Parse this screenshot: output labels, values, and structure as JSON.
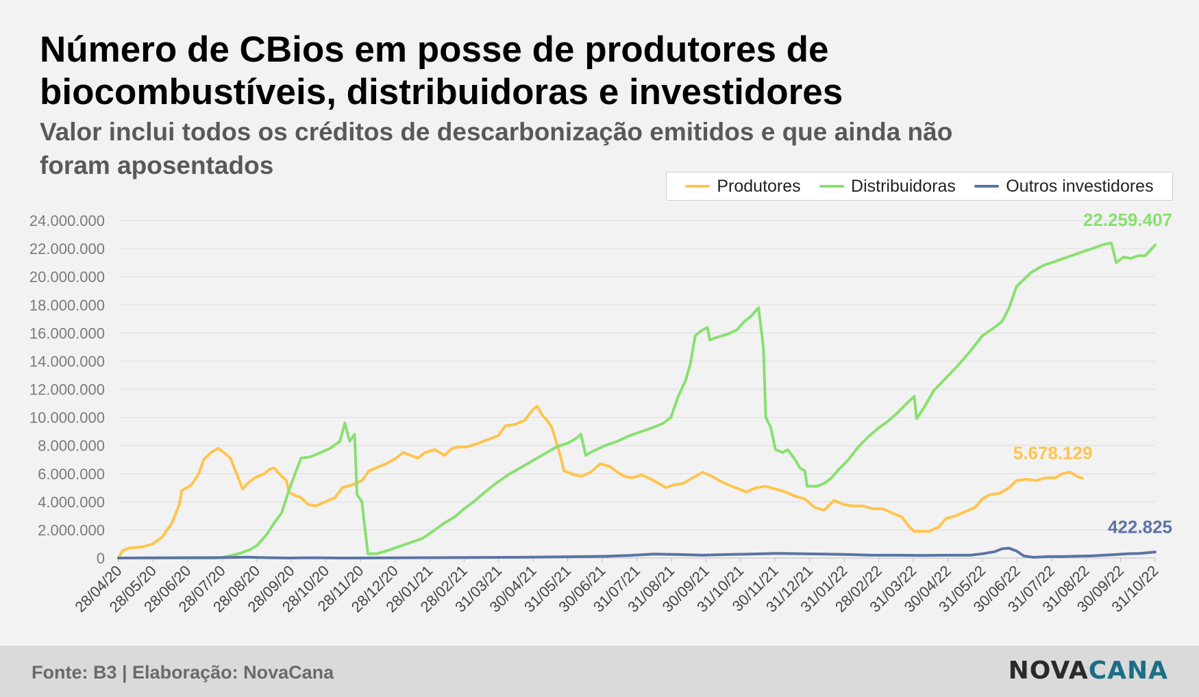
{
  "title": "Número de CBios em posse de produtores de biocombustíveis, distribuidoras e investidores",
  "subtitle": "Valor inclui todos os créditos de descarbonização emitidos e que ainda não foram aposentados",
  "footer": {
    "source": "Fonte: B3 | Elaboração: NovaCana",
    "brand_a": "NOVA",
    "brand_b": "CANA"
  },
  "colors": {
    "produtores": "#ffc44d",
    "distribuidoras": "#88e070",
    "outros": "#5b73a5",
    "grid": "#dcdcdc",
    "axis_text": "#444444",
    "ytick_text": "#7a7a7a"
  },
  "chart_data": {
    "type": "line",
    "x_tick_labels": [
      "28/04/20",
      "28/05/20",
      "28/06/20",
      "28/07/20",
      "28/08/20",
      "28/09/20",
      "28/10/20",
      "28/11/20",
      "28/12/20",
      "28/01/21",
      "28/02/21",
      "31/03/21",
      "30/04/21",
      "31/05/21",
      "30/06/21",
      "31/07/21",
      "31/08/21",
      "30/09/21",
      "31/10/21",
      "30/11/21",
      "31/12/21",
      "31/01/22",
      "28/02/22",
      "31/03/22",
      "30/04/22",
      "31/05/22",
      "30/06/22",
      "31/07/22",
      "31/08/22",
      "30/09/22",
      "31/10/22"
    ],
    "y_tick_labels": [
      "0",
      "2.000.000",
      "4.000.000",
      "6.000.000",
      "8.000.000",
      "10.000.000",
      "12.000.000",
      "14.000.000",
      "16.000.000",
      "18.000.000",
      "20.000.000",
      "22.000.000",
      "24.000.000"
    ],
    "ylim": [
      0,
      24000000
    ],
    "legend_position": "top-right",
    "grid": true,
    "series": [
      {
        "name": "Produtores",
        "color_key": "produtores",
        "end_label": "5.678.129",
        "points": [
          [
            0,
            0
          ],
          [
            0.15,
            500000
          ],
          [
            0.4,
            700000
          ],
          [
            1,
            800000
          ],
          [
            1.4,
            1000000
          ],
          [
            1.8,
            1500000
          ],
          [
            2.2,
            2500000
          ],
          [
            2.5,
            3800000
          ],
          [
            2.6,
            4800000
          ],
          [
            3,
            5200000
          ],
          [
            3.3,
            6000000
          ],
          [
            3.5,
            7000000
          ],
          [
            3.8,
            7500000
          ],
          [
            4.1,
            7800000
          ],
          [
            4.4,
            7400000
          ],
          [
            4.6,
            7100000
          ],
          [
            4.8,
            6200000
          ],
          [
            4.9,
            5800000
          ],
          [
            5.1,
            4900000
          ],
          [
            5.3,
            5300000
          ],
          [
            5.6,
            5700000
          ],
          [
            6,
            6000000
          ],
          [
            6.2,
            6300000
          ],
          [
            6.4,
            6400000
          ],
          [
            6.6,
            6000000
          ],
          [
            6.9,
            5500000
          ],
          [
            7,
            4700000
          ],
          [
            7.3,
            4400000
          ],
          [
            7.5,
            4300000
          ],
          [
            7.8,
            3800000
          ],
          [
            8.1,
            3700000
          ],
          [
            8.5,
            4000000
          ],
          [
            8.9,
            4300000
          ],
          [
            9.2,
            5000000
          ],
          [
            9.6,
            5200000
          ],
          [
            10,
            5500000
          ],
          [
            10.3,
            6200000
          ],
          [
            10.7,
            6500000
          ],
          [
            11,
            6700000
          ],
          [
            11.4,
            7100000
          ],
          [
            11.7,
            7500000
          ],
          [
            12,
            7300000
          ],
          [
            12.3,
            7100000
          ],
          [
            12.6,
            7500000
          ],
          [
            13,
            7700000
          ],
          [
            13.4,
            7300000
          ],
          [
            13.7,
            7800000
          ],
          [
            14,
            7900000
          ],
          [
            14.3,
            7900000
          ],
          [
            14.7,
            8100000
          ],
          [
            15,
            8300000
          ],
          [
            15.3,
            8500000
          ],
          [
            15.6,
            8700000
          ],
          [
            15.9,
            9400000
          ],
          [
            16.3,
            9500000
          ],
          [
            16.7,
            9800000
          ],
          [
            17,
            10500000
          ],
          [
            17.2,
            10800000
          ],
          [
            17.4,
            10200000
          ],
          [
            17.6,
            9800000
          ],
          [
            17.8,
            9300000
          ],
          [
            18,
            8200000
          ],
          [
            18.2,
            7000000
          ],
          [
            18.3,
            6200000
          ],
          [
            18.6,
            6000000
          ],
          [
            19,
            5800000
          ],
          [
            19.4,
            6100000
          ],
          [
            19.8,
            6700000
          ],
          [
            20.2,
            6500000
          ],
          [
            20.5,
            6100000
          ],
          [
            20.8,
            5800000
          ],
          [
            21.1,
            5700000
          ],
          [
            21.5,
            5900000
          ],
          [
            21.9,
            5600000
          ],
          [
            22.2,
            5300000
          ],
          [
            22.5,
            5000000
          ],
          [
            22.8,
            5200000
          ],
          [
            23.2,
            5300000
          ],
          [
            23.6,
            5700000
          ],
          [
            24,
            6100000
          ],
          [
            24.4,
            5800000
          ],
          [
            24.8,
            5400000
          ],
          [
            25.2,
            5100000
          ],
          [
            25.5,
            4900000
          ],
          [
            25.8,
            4700000
          ],
          [
            26.2,
            5000000
          ],
          [
            26.6,
            5100000
          ],
          [
            27,
            4900000
          ],
          [
            27.4,
            4700000
          ],
          [
            27.8,
            4400000
          ],
          [
            28.2,
            4200000
          ],
          [
            28.6,
            3600000
          ],
          [
            29,
            3400000
          ],
          [
            29.4,
            4100000
          ],
          [
            29.8,
            3800000
          ],
          [
            30.2,
            3700000
          ],
          [
            30.6,
            3700000
          ],
          [
            31,
            3500000
          ],
          [
            31.4,
            3500000
          ],
          [
            31.8,
            3200000
          ],
          [
            32.2,
            2900000
          ],
          [
            32.5,
            2200000
          ],
          [
            32.7,
            1900000
          ],
          [
            33,
            1900000
          ],
          [
            33.3,
            1900000
          ],
          [
            33.7,
            2200000
          ],
          [
            34,
            2800000
          ],
          [
            34.4,
            3000000
          ],
          [
            34.8,
            3300000
          ],
          [
            35.2,
            3600000
          ],
          [
            35.5,
            4200000
          ],
          [
            35.8,
            4500000
          ],
          [
            36.2,
            4600000
          ],
          [
            36.6,
            5000000
          ],
          [
            36.9,
            5500000
          ],
          [
            37.3,
            5600000
          ],
          [
            37.7,
            5500000
          ],
          [
            38.1,
            5700000
          ],
          [
            38.5,
            5700000
          ],
          [
            38.8,
            6000000
          ],
          [
            39.1,
            6100000
          ],
          [
            39.4,
            5800000
          ],
          [
            39.6,
            5678129
          ]
        ]
      },
      {
        "name": "Distribuidoras",
        "color_key": "distribuidoras",
        "end_label": "22.259.407",
        "points": [
          [
            0,
            0
          ],
          [
            4,
            0
          ],
          [
            4.3,
            50000
          ],
          [
            4.7,
            200000
          ],
          [
            5.1,
            400000
          ],
          [
            5.4,
            600000
          ],
          [
            5.7,
            900000
          ],
          [
            6.1,
            1700000
          ],
          [
            6.4,
            2500000
          ],
          [
            6.7,
            3200000
          ],
          [
            7,
            4800000
          ],
          [
            7.3,
            6200000
          ],
          [
            7.5,
            7100000
          ],
          [
            7.9,
            7200000
          ],
          [
            8.3,
            7500000
          ],
          [
            8.7,
            7800000
          ],
          [
            9.1,
            8300000
          ],
          [
            9.3,
            9600000
          ],
          [
            9.5,
            8300000
          ],
          [
            9.7,
            8800000
          ],
          [
            9.8,
            4500000
          ],
          [
            10,
            4000000
          ],
          [
            10.1,
            2500000
          ],
          [
            10.25,
            300000
          ],
          [
            10.6,
            300000
          ],
          [
            11,
            500000
          ],
          [
            11.5,
            800000
          ],
          [
            12,
            1100000
          ],
          [
            12.5,
            1400000
          ],
          [
            13,
            2000000
          ],
          [
            13.4,
            2500000
          ],
          [
            13.8,
            2900000
          ],
          [
            14.2,
            3500000
          ],
          [
            14.6,
            4000000
          ],
          [
            15,
            4600000
          ],
          [
            15.5,
            5300000
          ],
          [
            16,
            5900000
          ],
          [
            16.5,
            6400000
          ],
          [
            17,
            6900000
          ],
          [
            17.5,
            7400000
          ],
          [
            18,
            7900000
          ],
          [
            18.5,
            8200000
          ],
          [
            18.8,
            8500000
          ],
          [
            19,
            8800000
          ],
          [
            19.2,
            7300000
          ],
          [
            19.5,
            7600000
          ],
          [
            20,
            8000000
          ],
          [
            20.5,
            8300000
          ],
          [
            21,
            8700000
          ],
          [
            21.5,
            9000000
          ],
          [
            22,
            9300000
          ],
          [
            22.4,
            9600000
          ],
          [
            22.7,
            10000000
          ],
          [
            23,
            11500000
          ],
          [
            23.3,
            12600000
          ],
          [
            23.5,
            13800000
          ],
          [
            23.7,
            15800000
          ],
          [
            23.9,
            16100000
          ],
          [
            24.2,
            16400000
          ],
          [
            24.3,
            15500000
          ],
          [
            24.6,
            15700000
          ],
          [
            25,
            15900000
          ],
          [
            25.4,
            16200000
          ],
          [
            25.7,
            16800000
          ],
          [
            26,
            17200000
          ],
          [
            26.3,
            17800000
          ],
          [
            26.5,
            15000000
          ],
          [
            26.6,
            10000000
          ],
          [
            26.8,
            9300000
          ],
          [
            27,
            7700000
          ],
          [
            27.3,
            7500000
          ],
          [
            27.5,
            7700000
          ],
          [
            27.8,
            7000000
          ],
          [
            28,
            6400000
          ],
          [
            28.2,
            6200000
          ],
          [
            28.3,
            5100000
          ],
          [
            28.7,
            5100000
          ],
          [
            29,
            5300000
          ],
          [
            29.3,
            5700000
          ],
          [
            29.6,
            6300000
          ],
          [
            30,
            7000000
          ],
          [
            30.4,
            7900000
          ],
          [
            30.8,
            8600000
          ],
          [
            31.2,
            9200000
          ],
          [
            31.6,
            9700000
          ],
          [
            32,
            10300000
          ],
          [
            32.4,
            11000000
          ],
          [
            32.7,
            11500000
          ],
          [
            32.8,
            9900000
          ],
          [
            33.1,
            10700000
          ],
          [
            33.5,
            11900000
          ],
          [
            34,
            12800000
          ],
          [
            34.5,
            13700000
          ],
          [
            35,
            14700000
          ],
          [
            35.5,
            15800000
          ],
          [
            36,
            16400000
          ],
          [
            36.3,
            16800000
          ],
          [
            36.6,
            17800000
          ],
          [
            36.9,
            19300000
          ],
          [
            37.2,
            19800000
          ],
          [
            37.5,
            20300000
          ],
          [
            38,
            20800000
          ],
          [
            38.5,
            21100000
          ],
          [
            39,
            21400000
          ],
          [
            39.5,
            21700000
          ],
          [
            40,
            22000000
          ],
          [
            40.5,
            22300000
          ],
          [
            40.8,
            22400000
          ],
          [
            41,
            21000000
          ],
          [
            41.3,
            21400000
          ],
          [
            41.6,
            21300000
          ],
          [
            41.9,
            21500000
          ],
          [
            42.2,
            21500000
          ],
          [
            42.6,
            22259407
          ]
        ]
      },
      {
        "name": "Outros investidores",
        "color_key": "outros",
        "end_label": "422.825",
        "points": [
          [
            0,
            0
          ],
          [
            4.3,
            30000
          ],
          [
            5.3,
            60000
          ],
          [
            6.2,
            20000
          ],
          [
            7,
            0
          ],
          [
            8,
            20000
          ],
          [
            9,
            0
          ],
          [
            12,
            20000
          ],
          [
            16,
            50000
          ],
          [
            18,
            80000
          ],
          [
            20,
            120000
          ],
          [
            21,
            180000
          ],
          [
            22,
            280000
          ],
          [
            23,
            250000
          ],
          [
            24,
            200000
          ],
          [
            25,
            250000
          ],
          [
            26,
            280000
          ],
          [
            27,
            330000
          ],
          [
            28,
            300000
          ],
          [
            29,
            280000
          ],
          [
            30,
            250000
          ],
          [
            31,
            200000
          ],
          [
            32,
            200000
          ],
          [
            33,
            180000
          ],
          [
            34,
            200000
          ],
          [
            35,
            200000
          ],
          [
            35.5,
            300000
          ],
          [
            36,
            450000
          ],
          [
            36.3,
            650000
          ],
          [
            36.6,
            700000
          ],
          [
            36.9,
            500000
          ],
          [
            37.2,
            150000
          ],
          [
            37.6,
            50000
          ],
          [
            38.2,
            100000
          ],
          [
            38.8,
            100000
          ],
          [
            39.4,
            130000
          ],
          [
            40,
            150000
          ],
          [
            40.5,
            200000
          ],
          [
            41,
            250000
          ],
          [
            41.5,
            300000
          ],
          [
            42,
            330000
          ],
          [
            42.6,
            422825
          ]
        ]
      }
    ]
  }
}
